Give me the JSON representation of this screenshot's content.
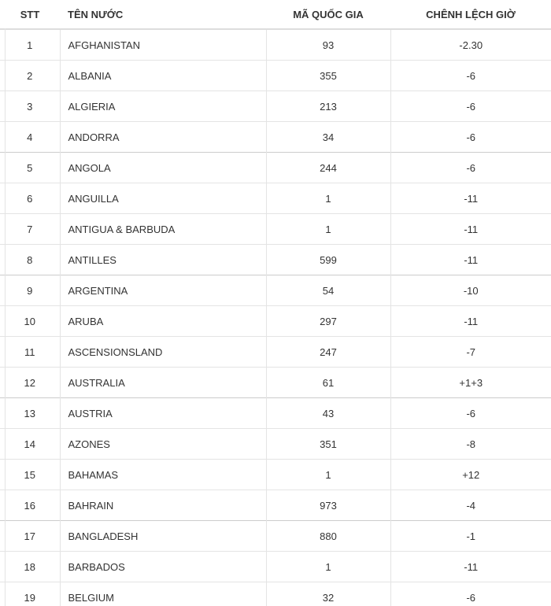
{
  "headers": {
    "stt": "STT",
    "country": "TÊN NƯỚC",
    "code": "MÃ QUỐC GIA",
    "timediff": "CHÊNH LỆCH GIỜ"
  },
  "rows": [
    {
      "stt": "1",
      "country": "AFGHANISTAN",
      "code": "93",
      "timediff": "-2.30"
    },
    {
      "stt": "2",
      "country": "ALBANIA",
      "code": "355",
      "timediff": "-6"
    },
    {
      "stt": "3",
      "country": "ALGIERIA",
      "code": "213",
      "timediff": "-6"
    },
    {
      "stt": "4",
      "country": "ANDORRA",
      "code": "34",
      "timediff": "-6"
    },
    {
      "stt": "5",
      "country": "ANGOLA",
      "code": "244",
      "timediff": "-6"
    },
    {
      "stt": "6",
      "country": "ANGUILLA",
      "code": "1",
      "timediff": "-11"
    },
    {
      "stt": "7",
      "country": "ANTIGUA & BARBUDA",
      "code": "1",
      "timediff": "-11"
    },
    {
      "stt": "8",
      "country": "ANTILLES",
      "code": "599",
      "timediff": "-11"
    },
    {
      "stt": "9",
      "country": "ARGENTINA",
      "code": "54",
      "timediff": "-10"
    },
    {
      "stt": "10",
      "country": "ARUBA",
      "code": "297",
      "timediff": "-11"
    },
    {
      "stt": "11",
      "country": "ASCENSIONSLAND",
      "code": "247",
      "timediff": "-7"
    },
    {
      "stt": "12",
      "country": "AUSTRALIA",
      "code": "61",
      "timediff": "+1+3"
    },
    {
      "stt": "13",
      "country": "AUSTRIA",
      "code": "43",
      "timediff": "-6"
    },
    {
      "stt": "14",
      "country": "AZONES",
      "code": "351",
      "timediff": "-8"
    },
    {
      "stt": "15",
      "country": "BAHAMAS",
      "code": "1",
      "timediff": "+12"
    },
    {
      "stt": "16",
      "country": "BAHRAIN",
      "code": "973",
      "timediff": "-4"
    },
    {
      "stt": "17",
      "country": "BANGLADESH",
      "code": "880",
      "timediff": "-1"
    },
    {
      "stt": "18",
      "country": "BARBADOS",
      "code": "1",
      "timediff": "-11"
    },
    {
      "stt": "19",
      "country": "BELGIUM",
      "code": "32",
      "timediff": "-6"
    }
  ]
}
